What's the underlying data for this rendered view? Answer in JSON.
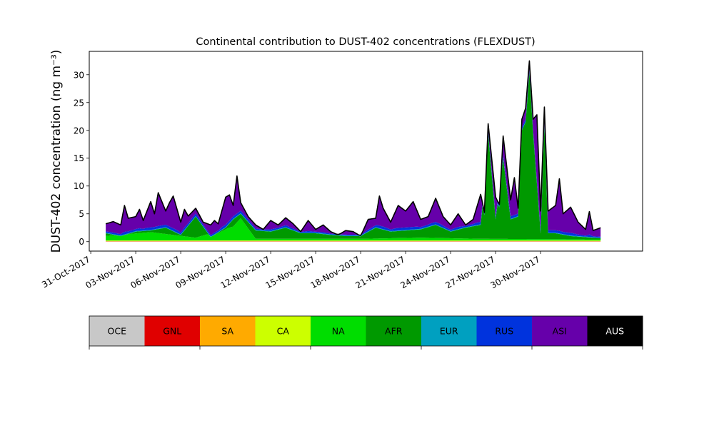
{
  "chart_data": {
    "type": "area",
    "stacked": true,
    "title": "Continental contribution to DUST-402 concentrations (FLEXDUST)",
    "xlabel": "",
    "ylabel": "DUST-402 concentration (ng m⁻³)",
    "ylim": [
      -1.7,
      34.2
    ],
    "yticks": [
      0,
      5,
      10,
      15,
      20,
      25,
      30
    ],
    "xlim_days_from_oct31": [
      -0.1,
      36.8
    ],
    "x_start": "2017-11-01",
    "x_end": "2017-12-01",
    "xtick_labels": [
      "31-Oct-2017",
      "03-Nov-2017",
      "06-Nov-2017",
      "09-Nov-2017",
      "12-Nov-2017",
      "15-Nov-2017",
      "18-Nov-2017",
      "21-Nov-2017",
      "24-Nov-2017",
      "27-Nov-2017",
      "30-Nov-2017"
    ],
    "grid": false,
    "legend_position": "below",
    "total_outline_color": "#000000",
    "series": [
      {
        "name": "OCE",
        "color": "#c8c8c8"
      },
      {
        "name": "GNL",
        "color": "#e00000"
      },
      {
        "name": "SA",
        "color": "#ffaa00"
      },
      {
        "name": "CA",
        "color": "#ccff00"
      },
      {
        "name": "NA",
        "color": "#00dd00"
      },
      {
        "name": "AFR",
        "color": "#009900"
      },
      {
        "name": "EUR",
        "color": "#00a0c0"
      },
      {
        "name": "RUS",
        "color": "#0033dd"
      },
      {
        "name": "ASI",
        "color": "#6600aa"
      },
      {
        "name": "AUS",
        "color": "#000000"
      }
    ],
    "total_keypoints": [
      [
        "2017-11-01",
        3.2
      ],
      [
        "2017-11-01T12",
        3.6
      ],
      [
        "2017-11-02",
        3.0
      ],
      [
        "2017-11-02T06",
        6.5
      ],
      [
        "2017-11-02T12",
        4.2
      ],
      [
        "2017-11-03",
        4.5
      ],
      [
        "2017-11-03T06",
        5.8
      ],
      [
        "2017-11-03T12",
        3.8
      ],
      [
        "2017-11-04",
        7.2
      ],
      [
        "2017-11-04T06",
        5.0
      ],
      [
        "2017-11-04T12",
        8.8
      ],
      [
        "2017-11-05",
        5.5
      ],
      [
        "2017-11-05T06",
        7.0
      ],
      [
        "2017-11-05T12",
        8.2
      ],
      [
        "2017-11-06",
        3.5
      ],
      [
        "2017-11-06T06",
        5.8
      ],
      [
        "2017-11-06T12",
        4.6
      ],
      [
        "2017-11-07",
        6.0
      ],
      [
        "2017-11-07T12",
        3.5
      ],
      [
        "2017-11-08",
        3.0
      ],
      [
        "2017-11-08T06",
        3.8
      ],
      [
        "2017-11-08T12",
        3.2
      ],
      [
        "2017-11-09",
        8.0
      ],
      [
        "2017-11-09T06",
        8.4
      ],
      [
        "2017-11-09T12",
        6.5
      ],
      [
        "2017-11-09T18",
        11.8
      ],
      [
        "2017-11-10",
        7.0
      ],
      [
        "2017-11-10T12",
        4.5
      ],
      [
        "2017-11-11",
        3.0
      ],
      [
        "2017-11-11T12",
        2.2
      ],
      [
        "2017-11-12",
        3.8
      ],
      [
        "2017-11-12T12",
        3.0
      ],
      [
        "2017-11-13",
        4.3
      ],
      [
        "2017-11-13T12",
        3.2
      ],
      [
        "2017-11-14",
        1.8
      ],
      [
        "2017-11-14T12",
        3.8
      ],
      [
        "2017-11-15",
        2.2
      ],
      [
        "2017-11-15T12",
        3.0
      ],
      [
        "2017-11-16",
        1.8
      ],
      [
        "2017-11-16T12",
        1.2
      ],
      [
        "2017-11-17",
        2.0
      ],
      [
        "2017-11-17T12",
        1.8
      ],
      [
        "2017-11-18",
        1.0
      ],
      [
        "2017-11-18T12",
        4.0
      ],
      [
        "2017-11-19",
        4.2
      ],
      [
        "2017-11-19T06",
        8.2
      ],
      [
        "2017-11-19T12",
        6.0
      ],
      [
        "2017-11-20",
        3.5
      ],
      [
        "2017-11-20T12",
        6.5
      ],
      [
        "2017-11-21",
        5.5
      ],
      [
        "2017-11-21T12",
        7.2
      ],
      [
        "2017-11-22",
        4.0
      ],
      [
        "2017-11-22T12",
        4.5
      ],
      [
        "2017-11-23",
        7.8
      ],
      [
        "2017-11-23T12",
        4.5
      ],
      [
        "2017-11-24",
        3.0
      ],
      [
        "2017-11-24T12",
        5.0
      ],
      [
        "2017-11-25",
        3.0
      ],
      [
        "2017-11-25T12",
        4.0
      ],
      [
        "2017-11-26",
        8.5
      ],
      [
        "2017-11-26T06",
        5.0
      ],
      [
        "2017-11-26T12",
        21.2
      ],
      [
        "2017-11-27",
        8.0
      ],
      [
        "2017-11-27T06",
        6.5
      ],
      [
        "2017-11-27T12",
        19.0
      ],
      [
        "2017-11-28",
        7.5
      ],
      [
        "2017-11-28T06",
        11.5
      ],
      [
        "2017-11-28T12",
        6.0
      ],
      [
        "2017-11-28T18",
        22.0
      ],
      [
        "2017-11-29",
        24.0
      ],
      [
        "2017-11-29T06",
        32.5
      ],
      [
        "2017-11-29T12",
        22.0
      ],
      [
        "2017-11-29T18",
        22.8
      ],
      [
        "2017-11-30",
        5.5
      ],
      [
        "2017-11-30T06",
        24.2
      ],
      [
        "2017-11-30T12",
        5.5
      ],
      [
        "2017-12-01",
        6.5
      ],
      [
        "2017-12-01T06",
        11.3
      ],
      [
        "2017-12-01T12",
        5.0
      ],
      [
        "2017-12-02",
        6.2
      ],
      [
        "2017-12-02T12",
        3.5
      ],
      [
        "2017-12-03",
        2.2
      ],
      [
        "2017-12-03T06",
        5.4
      ],
      [
        "2017-12-03T12",
        2.0
      ],
      [
        "2017-12-04",
        2.5
      ]
    ],
    "afr_keypoints": [
      [
        "2017-11-01",
        1.5
      ],
      [
        "2017-11-02",
        1.0
      ],
      [
        "2017-11-03",
        1.8
      ],
      [
        "2017-11-04",
        2.0
      ],
      [
        "2017-11-05",
        2.5
      ],
      [
        "2017-11-06",
        1.2
      ],
      [
        "2017-11-07",
        4.5
      ],
      [
        "2017-11-08",
        0.8
      ],
      [
        "2017-11-09",
        2.5
      ],
      [
        "2017-11-09T12",
        4.0
      ],
      [
        "2017-11-10",
        5.0
      ],
      [
        "2017-11-10T12",
        3.5
      ],
      [
        "2017-11-11",
        2.0
      ],
      [
        "2017-11-12",
        1.8
      ],
      [
        "2017-11-13",
        2.5
      ],
      [
        "2017-11-14",
        1.5
      ],
      [
        "2017-11-15",
        1.5
      ],
      [
        "2017-11-16",
        1.2
      ],
      [
        "2017-11-17",
        1.0
      ],
      [
        "2017-11-18",
        1.0
      ],
      [
        "2017-11-19",
        2.5
      ],
      [
        "2017-11-20",
        1.8
      ],
      [
        "2017-11-21",
        2.0
      ],
      [
        "2017-11-22",
        2.2
      ],
      [
        "2017-11-23",
        3.0
      ],
      [
        "2017-11-24",
        1.8
      ],
      [
        "2017-11-25",
        2.5
      ],
      [
        "2017-11-26",
        3.0
      ],
      [
        "2017-11-26T12",
        19.5
      ],
      [
        "2017-11-27",
        4.0
      ],
      [
        "2017-11-27T12",
        15.0
      ],
      [
        "2017-11-28",
        4.0
      ],
      [
        "2017-11-28T12",
        4.5
      ],
      [
        "2017-11-28T18",
        20.0
      ],
      [
        "2017-11-29",
        21.5
      ],
      [
        "2017-11-29T06",
        30.5
      ],
      [
        "2017-11-29T12",
        19.5
      ],
      [
        "2017-11-30",
        1.5
      ],
      [
        "2017-11-30T06",
        21.0
      ],
      [
        "2017-11-30T12",
        1.5
      ],
      [
        "2017-12-01",
        1.5
      ],
      [
        "2017-12-02",
        1.0
      ],
      [
        "2017-12-03",
        0.8
      ],
      [
        "2017-12-04",
        0.6
      ]
    ],
    "na_keypoints": [
      [
        "2017-11-01",
        0.8
      ],
      [
        "2017-11-04",
        1.5
      ],
      [
        "2017-11-07",
        0.5
      ],
      [
        "2017-11-09T12",
        2.5
      ],
      [
        "2017-11-10",
        4.0
      ],
      [
        "2017-11-11",
        0.3
      ],
      [
        "2017-11-18",
        0.3
      ],
      [
        "2017-11-22",
        0.5
      ],
      [
        "2017-11-26",
        0.3
      ],
      [
        "2017-12-04",
        0.2
      ]
    ]
  }
}
